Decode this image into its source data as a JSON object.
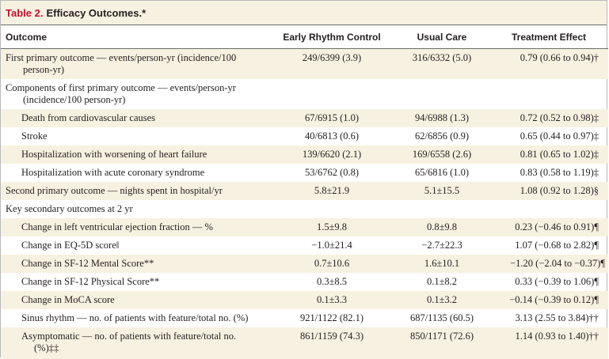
{
  "table": {
    "label": "Table 2.",
    "title": "Efficacy Outcomes.*",
    "columns": [
      "Outcome",
      "Early Rhythm Control",
      "Usual Care",
      "Treatment Effect"
    ],
    "rows": [
      {
        "outcome": "First primary outcome — events/person-yr (incidence/100",
        "outcome_cont": "person-yr)",
        "erc": "249/6399 (3.9)",
        "uc": "316/6332 (5.0)",
        "te": "0.79 (0.66 to 0.94)†"
      },
      {
        "outcome": "Components of first primary outcome — events/person-yr",
        "outcome_cont": "(incidence/100 person-yr)",
        "erc": "",
        "uc": "",
        "te": ""
      },
      {
        "outcome": "Death from cardiovascular causes",
        "erc": "67/6915 (1.0)",
        "uc": "94/6988 (1.3)",
        "te": "0.72 (0.52 to 0.98)‡"
      },
      {
        "outcome": "Stroke",
        "erc": "40/6813 (0.6)",
        "uc": "62/6856 (0.9)",
        "te": "0.65 (0.44 to 0.97)‡"
      },
      {
        "outcome": "Hospitalization with worsening of heart failure",
        "erc": "139/6620 (2.1)",
        "uc": "169/6558 (2.6)",
        "te": "0.81 (0.65 to 1.02)‡"
      },
      {
        "outcome": "Hospitalization with acute coronary syndrome",
        "erc": "53/6762 (0.8)",
        "uc": "65/6816 (1.0)",
        "te": "0.83 (0.58 to 1.19)‡"
      },
      {
        "outcome": "Second primary outcome — nights spent in hospital/yr",
        "erc": "5.8±21.9",
        "uc": "5.1±15.5",
        "te": "1.08 (0.92 to 1.28)§"
      },
      {
        "outcome": "Key secondary outcomes at 2 yr",
        "erc": "",
        "uc": "",
        "te": ""
      },
      {
        "outcome": "Change in left ventricular ejection fraction — %",
        "erc": "1.5±9.8",
        "uc": "0.8±9.8",
        "te": "0.23 (−0.46 to 0.91)¶"
      },
      {
        "outcome": "Change in EQ-5D score‖",
        "erc": "−1.0±21.4",
        "uc": "−2.7±22.3",
        "te": "1.07 (−0.68 to 2.82)¶"
      },
      {
        "outcome": "Change in SF-12 Mental Score**",
        "erc": "0.7±10.6",
        "uc": "1.6±10.1",
        "te": "−1.20 (−2.04 to −0.37)¶"
      },
      {
        "outcome": "Change in SF-12 Physical Score**",
        "erc": "0.3±8.5",
        "uc": "0.1±8.2",
        "te": "0.33 (−0.39 to 1.06)¶"
      },
      {
        "outcome": "Change in MoCA score",
        "erc": "0.1±3.3",
        "uc": "0.1±3.2",
        "te": "−0.14 (−0.39 to 0.12)¶"
      },
      {
        "outcome": "Sinus rhythm — no. of patients with feature/total no. (%)",
        "erc": "921/1122 (82.1)",
        "uc": "687/1135 (60.5)",
        "te": "3.13 (2.55 to 3.84)††"
      },
      {
        "outcome": "Asymptomatic — no. of patients with feature/total no.",
        "outcome_cont": "(%)‡‡",
        "erc": "861/1159 (74.3)",
        "uc": "850/1171 (72.6)",
        "te": "1.14 (0.93 to 1.40)††"
      }
    ]
  }
}
